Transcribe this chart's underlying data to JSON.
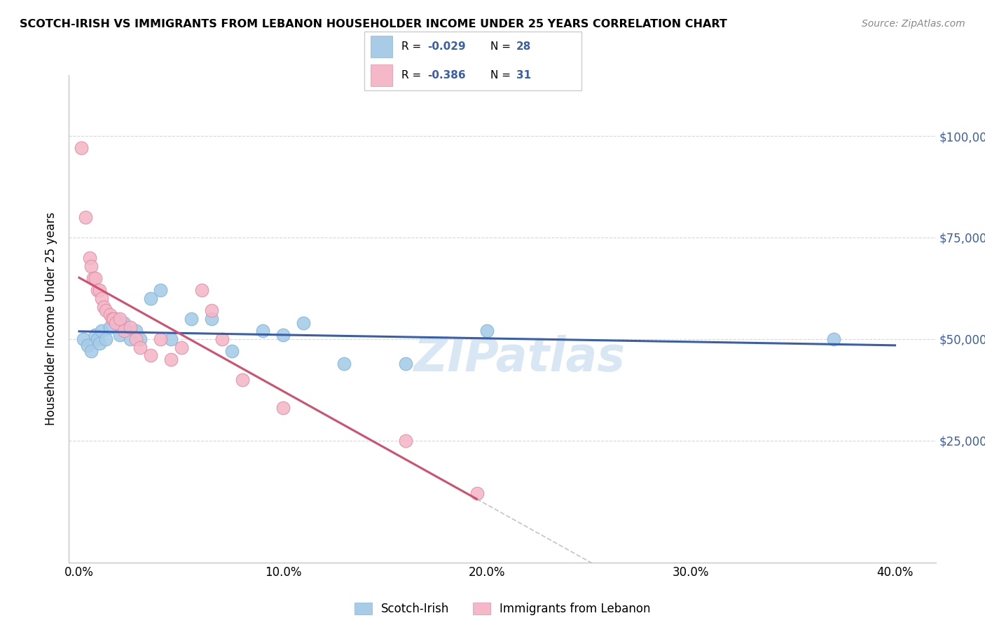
{
  "title": "SCOTCH-IRISH VS IMMIGRANTS FROM LEBANON HOUSEHOLDER INCOME UNDER 25 YEARS CORRELATION CHART",
  "source": "Source: ZipAtlas.com",
  "ylabel": "Householder Income Under 25 years",
  "xlabel_ticks": [
    "0.0%",
    "10.0%",
    "20.0%",
    "30.0%",
    "40.0%"
  ],
  "xlabel_vals": [
    0.0,
    0.1,
    0.2,
    0.3,
    0.4
  ],
  "ylabel_ticks": [
    "$25,000",
    "$50,000",
    "$75,000",
    "$100,000"
  ],
  "ylabel_vals": [
    25000,
    50000,
    75000,
    100000
  ],
  "ylim": [
    -5000,
    115000
  ],
  "xlim": [
    -0.005,
    0.42
  ],
  "legend_blue_label": "Scotch-Irish",
  "legend_pink_label": "Immigrants from Lebanon",
  "r_blue": -0.029,
  "n_blue": 28,
  "r_pink": -0.386,
  "n_pink": 31,
  "blue_color": "#a8cce8",
  "pink_color": "#f4b8c8",
  "blue_line_color": "#3a5faa",
  "pink_line_color": "#d05070",
  "dashed_line_color": "#c8c8c8",
  "watermark": "ZIPatlas",
  "scotch_irish_x": [
    0.002,
    0.004,
    0.006,
    0.008,
    0.009,
    0.01,
    0.011,
    0.013,
    0.015,
    0.018,
    0.02,
    0.022,
    0.025,
    0.028,
    0.03,
    0.035,
    0.04,
    0.045,
    0.055,
    0.065,
    0.075,
    0.09,
    0.1,
    0.11,
    0.13,
    0.16,
    0.2,
    0.37
  ],
  "scotch_irish_y": [
    50000,
    48500,
    47000,
    51000,
    50000,
    49000,
    52000,
    50000,
    53000,
    55000,
    51000,
    54000,
    50000,
    52000,
    50000,
    60000,
    62000,
    50000,
    55000,
    55000,
    47000,
    52000,
    51000,
    54000,
    44000,
    44000,
    52000,
    50000
  ],
  "lebanon_x": [
    0.001,
    0.003,
    0.005,
    0.006,
    0.007,
    0.008,
    0.009,
    0.01,
    0.011,
    0.012,
    0.013,
    0.015,
    0.016,
    0.017,
    0.018,
    0.02,
    0.022,
    0.025,
    0.028,
    0.03,
    0.035,
    0.04,
    0.045,
    0.05,
    0.06,
    0.065,
    0.07,
    0.08,
    0.1,
    0.16,
    0.195
  ],
  "lebanon_y": [
    97000,
    80000,
    70000,
    68000,
    65000,
    65000,
    62000,
    62000,
    60000,
    58000,
    57000,
    56000,
    55000,
    55000,
    54000,
    55000,
    52000,
    53000,
    50000,
    48000,
    46000,
    50000,
    45000,
    48000,
    62000,
    57000,
    50000,
    40000,
    33000,
    25000,
    12000
  ]
}
